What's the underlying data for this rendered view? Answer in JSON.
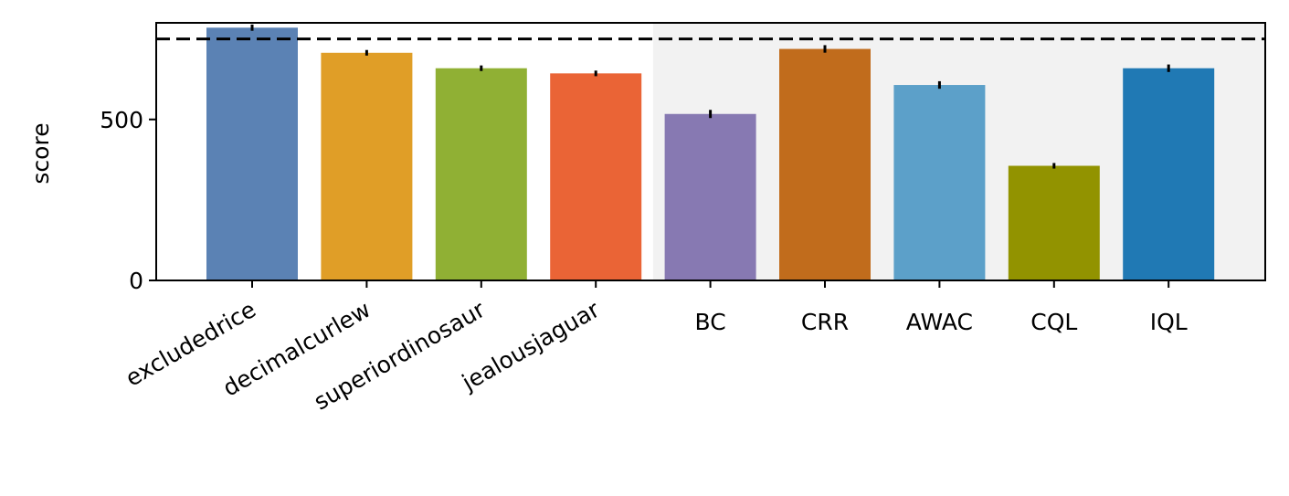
{
  "chart_data": {
    "type": "bar",
    "title": "",
    "xlabel": "",
    "ylabel": "score",
    "categories": [
      "excludedrice",
      "decimalcurlew",
      "superiordinosaur",
      "jealousjaguar",
      "BC",
      "CRR",
      "AWAC",
      "CQL",
      "IQL"
    ],
    "values": [
      785,
      707,
      659,
      643,
      517,
      719,
      607,
      356,
      659
    ],
    "errors": [
      4,
      3,
      3,
      3,
      7,
      6,
      6,
      3,
      6
    ],
    "colors": [
      "#5b82b4",
      "#e09e27",
      "#90b034",
      "#ea6436",
      "#8779b2",
      "#c16c1c",
      "#5ca0c9",
      "#929300",
      "#2079b4"
    ],
    "ylim": [
      0,
      800
    ],
    "yticks": [
      0,
      500
    ],
    "reference_line": 750,
    "shaded_region_start_category": "BC",
    "shaded_color": "#f2f2f2",
    "rotated_label_categories": [
      "excludedrice",
      "decimalcurlew",
      "superiordinosaur",
      "jealousjaguar"
    ],
    "grid": false,
    "legend": "none"
  }
}
